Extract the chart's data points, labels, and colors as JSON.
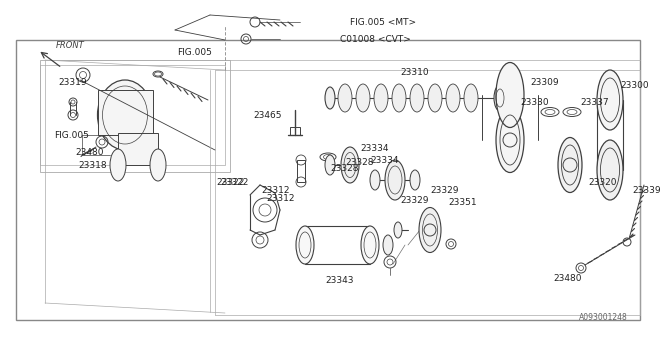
{
  "bg_color": "#ffffff",
  "line_color": "#404040",
  "light_line": "#707070",
  "text_color": "#222222",
  "diagram_code": "A093001248",
  "labels": {
    "front": "FRONT",
    "fig005_top": "FIG.005",
    "fig005_left": "FIG.005",
    "p23343": "23343",
    "p23351": "23351",
    "p23329": "23329",
    "p23322": "23322",
    "p23334": "23334",
    "p23312": "23312",
    "p23328": "23328",
    "p23465": "23465",
    "p23310": "23310",
    "p23309": "23309",
    "p23320": "23320",
    "p23330": "23330",
    "p23337": "23337",
    "p23300": "23300",
    "p23339": "23339",
    "p23480_right": "23480",
    "p23318": "23318",
    "p23480_left": "23480",
    "p23319": "23319",
    "c01008": "C01008 <CVT>",
    "fig005mt": "FIG.005 <MT>"
  }
}
